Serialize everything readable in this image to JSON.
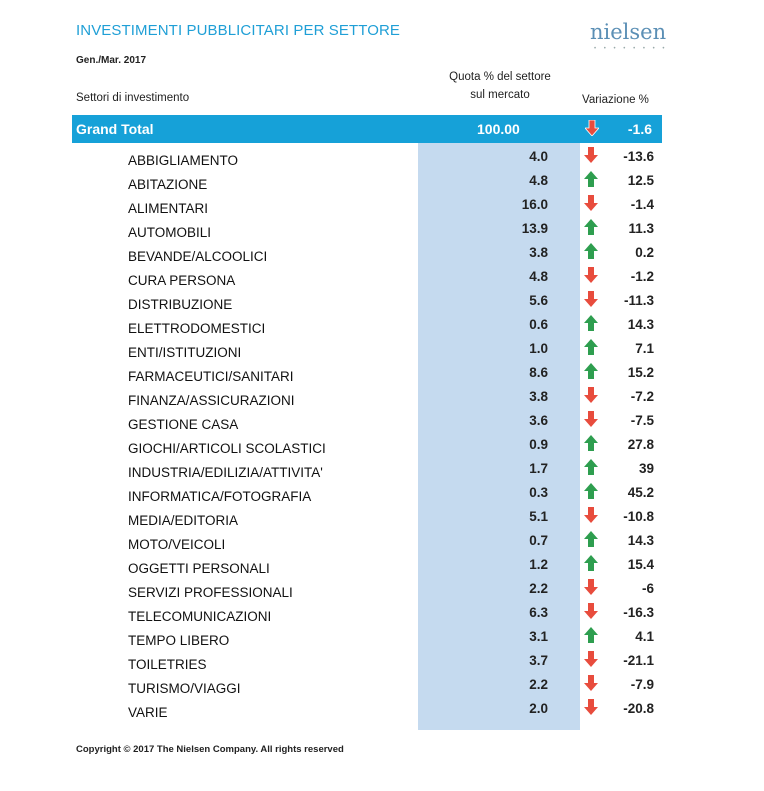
{
  "header": {
    "title": "INVESTIMENTI PUBBLICITARI PER SETTORE",
    "logo": "nielsen",
    "period": "Gen./Mar. 2017"
  },
  "columns": {
    "sector": "Settori di investimento",
    "quota_line1": "Quota % del settore",
    "quota_line2": "sul mercato",
    "variation": "Variazione %"
  },
  "grand_total": {
    "label": "Grand Total",
    "value": "100.00",
    "variation": "-1.6",
    "direction": "down"
  },
  "rows": [
    {
      "name": "ABBIGLIAMENTO",
      "value": "4.0",
      "variation": "-13.6",
      "direction": "down"
    },
    {
      "name": "ABITAZIONE",
      "value": "4.8",
      "variation": "12.5",
      "direction": "up"
    },
    {
      "name": "ALIMENTARI",
      "value": "16.0",
      "variation": "-1.4",
      "direction": "down"
    },
    {
      "name": "AUTOMOBILI",
      "value": "13.9",
      "variation": "11.3",
      "direction": "up"
    },
    {
      "name": "BEVANDE/ALCOOLICI",
      "value": "3.8",
      "variation": "0.2",
      "direction": "up"
    },
    {
      "name": "CURA PERSONA",
      "value": "4.8",
      "variation": "-1.2",
      "direction": "down"
    },
    {
      "name": "DISTRIBUZIONE",
      "value": "5.6",
      "variation": "-11.3",
      "direction": "down"
    },
    {
      "name": "ELETTRODOMESTICI",
      "value": "0.6",
      "variation": "14.3",
      "direction": "up"
    },
    {
      "name": "ENTI/ISTITUZIONI",
      "value": "1.0",
      "variation": "7.1",
      "direction": "up"
    },
    {
      "name": "FARMACEUTICI/SANITARI",
      "value": "8.6",
      "variation": "15.2",
      "direction": "up"
    },
    {
      "name": "FINANZA/ASSICURAZIONI",
      "value": "3.8",
      "variation": "-7.2",
      "direction": "down"
    },
    {
      "name": "GESTIONE CASA",
      "value": "3.6",
      "variation": "-7.5",
      "direction": "down"
    },
    {
      "name": "GIOCHI/ARTICOLI SCOLASTICI",
      "value": "0.9",
      "variation": "27.8",
      "direction": "up"
    },
    {
      "name": "INDUSTRIA/EDILIZIA/ATTIVITA'",
      "value": "1.7",
      "variation": "39",
      "direction": "up"
    },
    {
      "name": "INFORMATICA/FOTOGRAFIA",
      "value": "0.3",
      "variation": "45.2",
      "direction": "up"
    },
    {
      "name": "MEDIA/EDITORIA",
      "value": "5.1",
      "variation": "-10.8",
      "direction": "down"
    },
    {
      "name": "MOTO/VEICOLI",
      "value": "0.7",
      "variation": "14.3",
      "direction": "up"
    },
    {
      "name": "OGGETTI PERSONALI",
      "value": "1.2",
      "variation": "15.4",
      "direction": "up"
    },
    {
      "name": "SERVIZI PROFESSIONALI",
      "value": "2.2",
      "variation": "-6",
      "direction": "down"
    },
    {
      "name": "TELECOMUNICAZIONI",
      "value": "6.3",
      "variation": "-16.3",
      "direction": "down"
    },
    {
      "name": "TEMPO LIBERO",
      "value": "3.1",
      "variation": "4.1",
      "direction": "up"
    },
    {
      "name": "TOILETRIES",
      "value": "3.7",
      "variation": "-21.1",
      "direction": "down"
    },
    {
      "name": "TURISMO/VIAGGI",
      "value": "2.2",
      "variation": "-7.9",
      "direction": "down"
    },
    {
      "name": "VARIE",
      "value": "2.0",
      "variation": "-20.8",
      "direction": "down"
    }
  ],
  "colors": {
    "up": "#2e9e4f",
    "down": "#e84c3d",
    "accent": "#16a1d8",
    "column": "#c5daef"
  },
  "footer": {
    "copyright": "Copyright © 2017 The Nielsen Company. All rights reserved"
  }
}
